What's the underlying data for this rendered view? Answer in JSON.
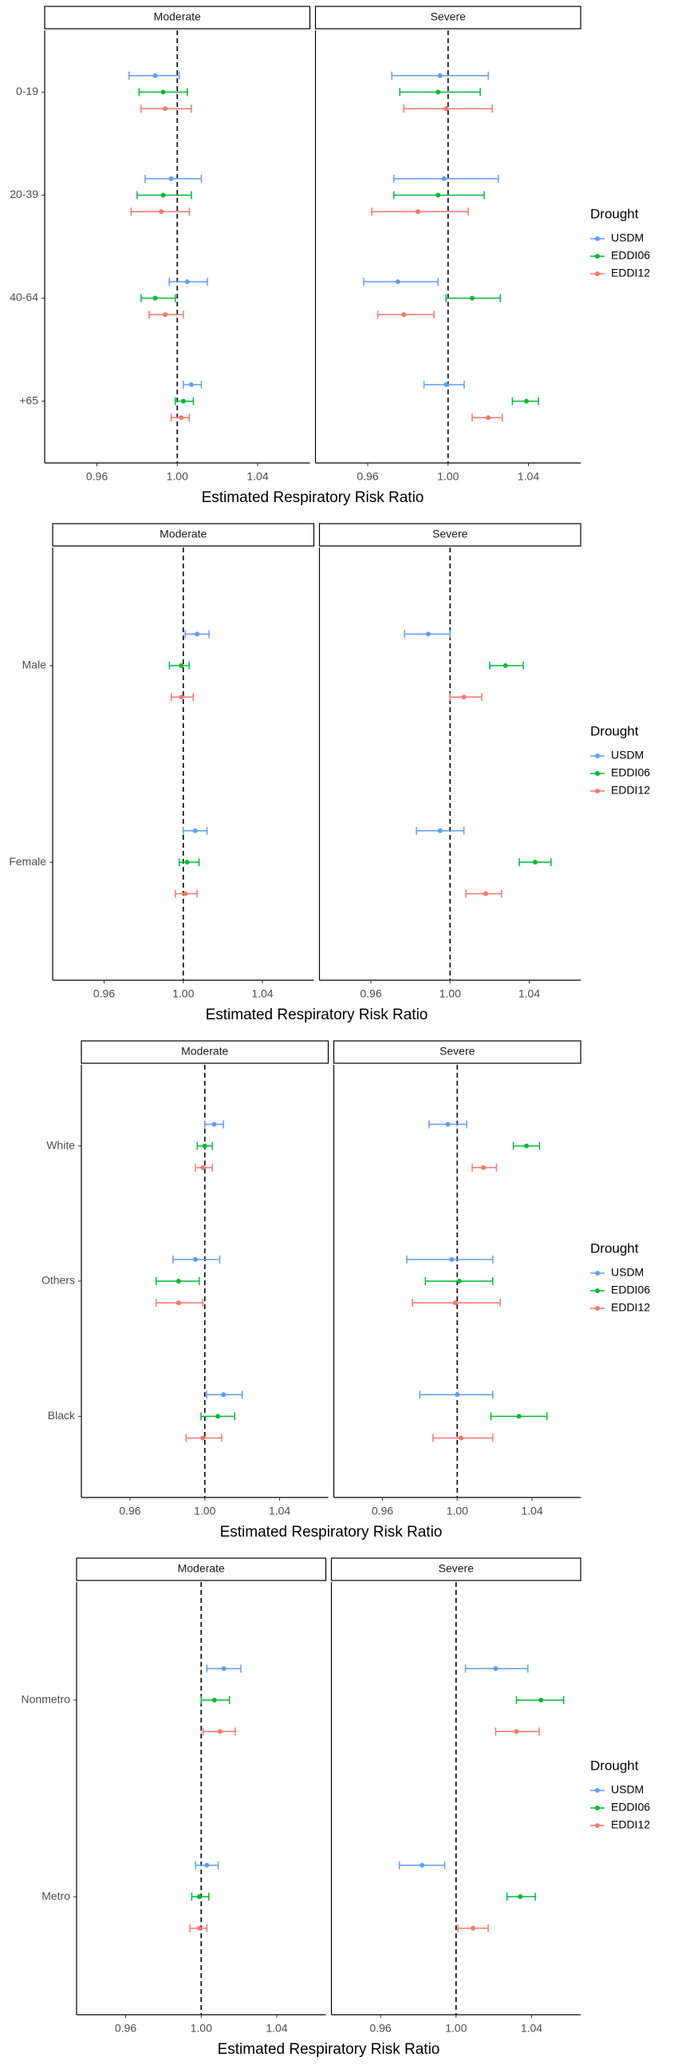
{
  "chart_data": [
    {
      "type": "forest",
      "categories": [
        "0-19",
        "20-39",
        "40-64",
        "+65"
      ],
      "xlabel": "Estimated Respiratory Risk Ratio",
      "legend_title": "Drought",
      "xlim": [
        0.934,
        1.066
      ],
      "xticks": [
        0.96,
        {
          "value": 1,
          "label": "1.00"
        },
        1.04
      ],
      "xintercept": 1,
      "series": [
        {
          "name": "USDM",
          "color": "#619CFF"
        },
        {
          "name": "EDDI06",
          "color": "#00BA38"
        },
        {
          "name": "EDDI12",
          "color": "#F8766D"
        }
      ],
      "facets": [
        {
          "title": "Moderate",
          "values": [
            [
              0.989,
              0.997,
              1.005,
              1.007
            ],
            [
              0.993,
              0.993,
              0.989,
              1.003
            ],
            [
              0.994,
              0.992,
              0.994,
              1.002
            ]
          ],
          "lower": [
            [
              0.976,
              0.984,
              0.996,
              1.003
            ],
            [
              0.981,
              0.98,
              0.982,
              0.999
            ],
            [
              0.982,
              0.977,
              0.986,
              0.997
            ]
          ],
          "upper": [
            [
              1.001,
              1.012,
              1.015,
              1.012
            ],
            [
              1.005,
              1.007,
              0.999,
              1.008
            ],
            [
              1.007,
              1.006,
              1.003,
              1.006
            ]
          ]
        },
        {
          "title": "Severe",
          "values": [
            [
              0.996,
              0.998,
              0.975,
              0.999
            ],
            [
              0.995,
              0.995,
              1.012,
              1.039
            ],
            [
              0.999,
              0.985,
              0.978,
              1.02
            ]
          ],
          "lower": [
            [
              0.972,
              0.973,
              0.958,
              0.988
            ],
            [
              0.976,
              0.973,
              0.999,
              1.032
            ],
            [
              0.978,
              0.962,
              0.965,
              1.012
            ]
          ],
          "upper": [
            [
              1.02,
              1.025,
              0.995,
              1.008
            ],
            [
              1.016,
              1.018,
              1.026,
              1.045
            ],
            [
              1.022,
              1.01,
              0.993,
              1.027
            ]
          ]
        }
      ]
    },
    {
      "type": "forest",
      "categories": [
        "Male",
        "Female"
      ],
      "xlabel": "Estimated Respiratory Risk Ratio",
      "legend_title": "Drought",
      "xlim": [
        0.934,
        1.066
      ],
      "xticks": [
        0.96,
        {
          "value": 1,
          "label": "1.00"
        },
        1.04
      ],
      "xintercept": 1,
      "series": [
        {
          "name": "USDM",
          "color": "#619CFF"
        },
        {
          "name": "EDDI06",
          "color": "#00BA38"
        },
        {
          "name": "EDDI12",
          "color": "#F8766D"
        }
      ],
      "facets": [
        {
          "title": "Moderate",
          "values": [
            [
              1.007,
              1.006
            ],
            [
              0.999,
              1.002
            ],
            [
              0.999,
              1.001
            ]
          ],
          "lower": [
            [
              1.001,
              1.0
            ],
            [
              0.993,
              0.998
            ],
            [
              0.994,
              0.996
            ]
          ],
          "upper": [
            [
              1.013,
              1.012
            ],
            [
              1.003,
              1.008
            ],
            [
              1.005,
              1.007
            ]
          ]
        },
        {
          "title": "Severe",
          "values": [
            [
              0.989,
              0.995
            ],
            [
              1.028,
              1.043
            ],
            [
              1.007,
              1.018
            ]
          ],
          "lower": [
            [
              0.977,
              0.983
            ],
            [
              1.02,
              1.035
            ],
            [
              1.0,
              1.008
            ]
          ],
          "upper": [
            [
              1.0,
              1.007
            ],
            [
              1.037,
              1.051
            ],
            [
              1.016,
              1.026
            ]
          ]
        }
      ]
    },
    {
      "type": "forest",
      "categories": [
        "White",
        "Others",
        "Black"
      ],
      "xlabel": "Estimated Respiratory Risk Ratio",
      "legend_title": "Drought",
      "xlim": [
        0.934,
        1.066
      ],
      "xticks": [
        0.96,
        {
          "value": 1,
          "label": "1.00"
        },
        1.04
      ],
      "xintercept": 1,
      "series": [
        {
          "name": "USDM",
          "color": "#619CFF"
        },
        {
          "name": "EDDI06",
          "color": "#00BA38"
        },
        {
          "name": "EDDI12",
          "color": "#F8766D"
        }
      ],
      "facets": [
        {
          "title": "Moderate",
          "values": [
            [
              1.005,
              0.995,
              1.01
            ],
            [
              1.0,
              0.986,
              1.007
            ],
            [
              0.999,
              0.986,
              0.999
            ]
          ],
          "lower": [
            [
              1.0,
              0.983,
              1.001
            ],
            [
              0.996,
              0.974,
              0.998
            ],
            [
              0.995,
              0.974,
              0.99
            ]
          ],
          "upper": [
            [
              1.01,
              1.008,
              1.02
            ],
            [
              1.004,
              0.997,
              1.016
            ],
            [
              1.004,
              0.999,
              1.009
            ]
          ]
        },
        {
          "title": "Severe",
          "values": [
            [
              0.995,
              0.997,
              1.0
            ],
            [
              1.037,
              1.001,
              1.033
            ],
            [
              1.014,
              0.999,
              1.002
            ]
          ],
          "lower": [
            [
              0.985,
              0.973,
              0.98
            ],
            [
              1.03,
              0.983,
              1.018
            ],
            [
              1.008,
              0.976,
              0.987
            ]
          ],
          "upper": [
            [
              1.005,
              1.019,
              1.019
            ],
            [
              1.044,
              1.019,
              1.048
            ],
            [
              1.021,
              1.023,
              1.019
            ]
          ]
        }
      ]
    },
    {
      "type": "forest",
      "categories": [
        "Nonmetro",
        "Metro"
      ],
      "xlabel": "Estimated Respiratory Risk Ratio",
      "legend_title": "Drought",
      "xlim": [
        0.934,
        1.066
      ],
      "xticks": [
        0.96,
        {
          "value": 1,
          "label": "1.00"
        },
        1.04
      ],
      "xintercept": 1,
      "series": [
        {
          "name": "USDM",
          "color": "#619CFF"
        },
        {
          "name": "EDDI06",
          "color": "#00BA38"
        },
        {
          "name": "EDDI12",
          "color": "#F8766D"
        }
      ],
      "facets": [
        {
          "title": "Moderate",
          "values": [
            [
              1.012,
              1.003
            ],
            [
              1.007,
              0.999
            ],
            [
              1.01,
              0.999
            ]
          ],
          "lower": [
            [
              1.003,
              0.997
            ],
            [
              1.0,
              0.995
            ],
            [
              1.001,
              0.994
            ]
          ],
          "upper": [
            [
              1.021,
              1.009
            ],
            [
              1.015,
              1.004
            ],
            [
              1.018,
              1.003
            ]
          ]
        },
        {
          "title": "Severe",
          "values": [
            [
              1.021,
              0.982
            ],
            [
              1.045,
              1.034
            ],
            [
              1.032,
              1.009
            ]
          ],
          "lower": [
            [
              1.005,
              0.97
            ],
            [
              1.032,
              1.027
            ],
            [
              1.021,
              1.001
            ]
          ],
          "upper": [
            [
              1.038,
              0.994
            ],
            [
              1.057,
              1.042
            ],
            [
              1.044,
              1.017
            ]
          ]
        }
      ]
    }
  ]
}
